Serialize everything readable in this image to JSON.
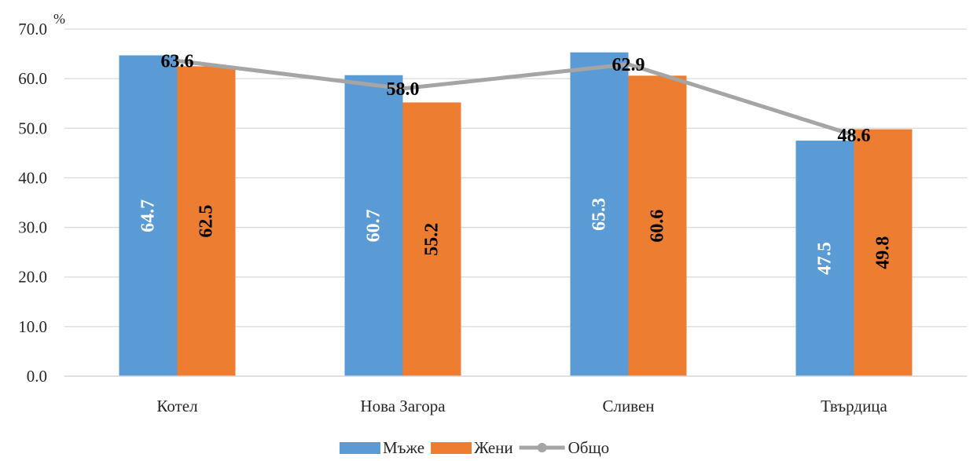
{
  "chart_data": {
    "type": "bar",
    "ylabel": "%",
    "ylim": [
      0,
      70
    ],
    "yticks": [
      "0.0",
      "10.0",
      "20.0",
      "30.0",
      "40.0",
      "50.0",
      "60.0",
      "70.0"
    ],
    "grid": true,
    "legend": "bottom",
    "categories": [
      "Котел",
      "Нова Загора",
      "Сливен",
      "Твърдица"
    ],
    "series": [
      {
        "name": "Мъже",
        "type": "bar",
        "color": "#5B9BD5",
        "label_color": "#ffffff",
        "values": [
          64.7,
          60.7,
          65.3,
          47.5
        ],
        "labels": [
          "64.7",
          "60.7",
          "65.3",
          "47.5"
        ]
      },
      {
        "name": "Жени",
        "type": "bar",
        "color": "#ED7D31",
        "label_color": "#000000",
        "values": [
          62.5,
          55.2,
          60.6,
          49.8
        ],
        "labels": [
          "62.5",
          "55.2",
          "60.6",
          "49.8"
        ]
      },
      {
        "name": "Общо",
        "type": "line",
        "color": "#A5A5A5",
        "label_color": "#000000",
        "values": [
          63.6,
          58.0,
          62.9,
          48.6
        ],
        "labels": [
          "63.6",
          "58.0",
          "62.9",
          "48.6"
        ]
      }
    ]
  }
}
